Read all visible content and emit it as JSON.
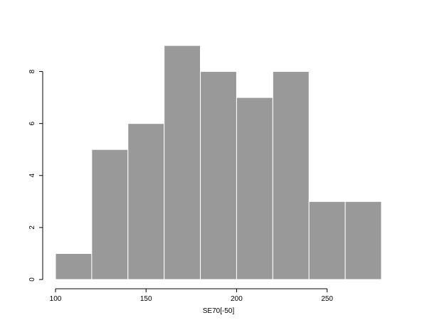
{
  "chart_data": {
    "type": "bar",
    "subtype": "histogram",
    "title": "",
    "xlabel": "SE70[-50]",
    "ylabel": "",
    "bin_edges": [
      100,
      120,
      140,
      160,
      180,
      200,
      220,
      240,
      260,
      280
    ],
    "values": [
      1,
      5,
      6,
      9,
      8,
      7,
      8,
      3,
      3
    ],
    "xlim": [
      100,
      280
    ],
    "ylim": [
      0,
      9
    ],
    "x_ticks": [
      100,
      150,
      200,
      250
    ],
    "y_ticks": [
      0,
      2,
      4,
      6,
      8
    ],
    "grid": false,
    "bar_color": "#999999",
    "bar_edge_color": "#ffffff"
  }
}
